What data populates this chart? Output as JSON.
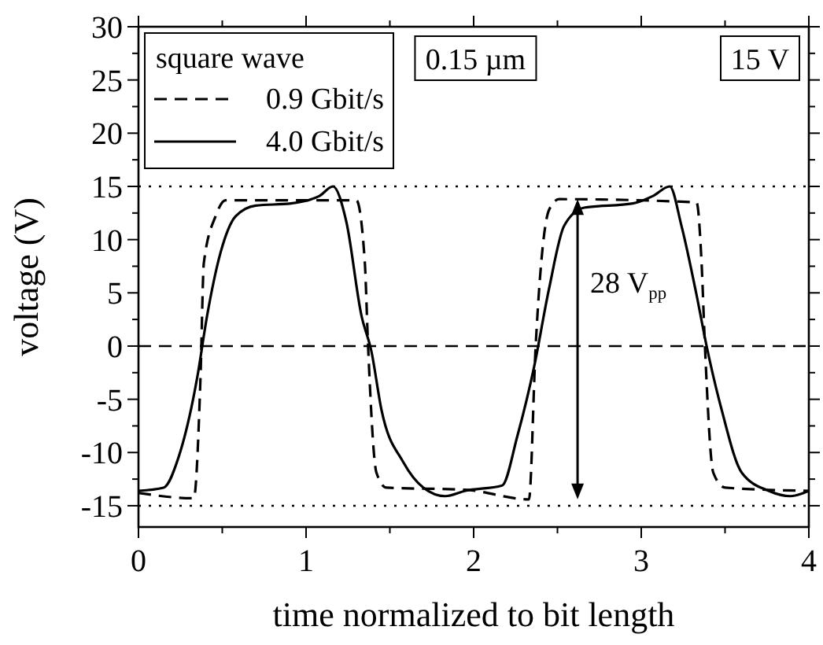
{
  "chart_data": {
    "type": "line",
    "xlabel": "time normalized to bit length",
    "ylabel": "voltage (V)",
    "legend_title": "square wave",
    "legend": "top left",
    "xlim": [
      0,
      4
    ],
    "ylim": [
      -17,
      30
    ],
    "xticks": [
      0,
      {
        "value": 0.5,
        "label": null
      },
      1,
      {
        "value": 1.5,
        "label": null
      },
      2,
      {
        "value": 2.5,
        "label": null
      },
      3,
      {
        "value": 3.5,
        "label": null
      },
      4
    ],
    "yticks": [
      -15,
      {
        "value": -12.5,
        "label": null
      },
      -10,
      {
        "value": -7.5,
        "label": null
      },
      -5,
      {
        "value": -2.5,
        "label": null
      },
      0,
      {
        "value": 2.5,
        "label": null
      },
      5,
      {
        "value": 7.5,
        "label": null
      },
      10,
      {
        "value": 12.5,
        "label": null
      },
      15,
      {
        "value": 17.5,
        "label": null
      },
      20,
      {
        "value": 22.5,
        "label": null
      },
      25,
      {
        "value": 27.5,
        "label": null
      },
      30
    ],
    "series": [
      {
        "name": "0.9 Gbit/s",
        "color": "#000000",
        "line_style": "dashed",
        "x": [
          0,
          0.33,
          0.37,
          0.39,
          0.46,
          0.52,
          1.3,
          1.35,
          1.37,
          1.42,
          1.48,
          1.95,
          2.33,
          2.37,
          2.45,
          2.51,
          3.33,
          3.36,
          3.38,
          3.43,
          3.5,
          4.0
        ],
        "values": [
          -13.8,
          -14.3,
          -3,
          7.8,
          12.2,
          13.7,
          13.7,
          8,
          0,
          -11.9,
          -13.3,
          -13.5,
          -14.4,
          0,
          12.8,
          13.8,
          13.5,
          7.8,
          0,
          -11.9,
          -13.3,
          -13.6
        ]
      },
      {
        "name": "4.0 Gbit/s",
        "color": "#000000",
        "line_style": "solid",
        "x": [
          0,
          0.15,
          0.24,
          0.35,
          0.41,
          0.49,
          0.58,
          0.7,
          0.91,
          1.08,
          1.16,
          1.24,
          1.33,
          1.39,
          1.45,
          1.58,
          1.7,
          1.83,
          1.95,
          2.17,
          2.26,
          2.36,
          2.45,
          2.54,
          2.66,
          2.95,
          3.07,
          3.17,
          3.24,
          3.33,
          3.39,
          3.48,
          3.6,
          3.76,
          3.89,
          4.0
        ],
        "values": [
          -13.6,
          -13.3,
          -10.4,
          -3,
          2.9,
          8.8,
          12.2,
          13.2,
          13.4,
          14.1,
          15,
          11.7,
          2.9,
          -0.5,
          -6,
          -10.9,
          -13.3,
          -14.1,
          -13.6,
          -13.1,
          -8.5,
          -2,
          5.4,
          11.3,
          13,
          13.4,
          14.1,
          15,
          11.3,
          4.8,
          0,
          -6,
          -11.9,
          -13.6,
          -14.1,
          -13.6
        ]
      }
    ],
    "ref_lines": [
      {
        "axis": "y",
        "value": 15,
        "line_style": "dotted",
        "color": "#000000"
      },
      {
        "axis": "y",
        "value": 0,
        "line_style": "dashed",
        "color": "#000000"
      },
      {
        "axis": "y",
        "value": -15,
        "line_style": "dotted",
        "color": "#000000"
      }
    ],
    "annotations": [
      "0.15 µm",
      "15 V",
      "28 V$_{pp}$"
    ]
  }
}
